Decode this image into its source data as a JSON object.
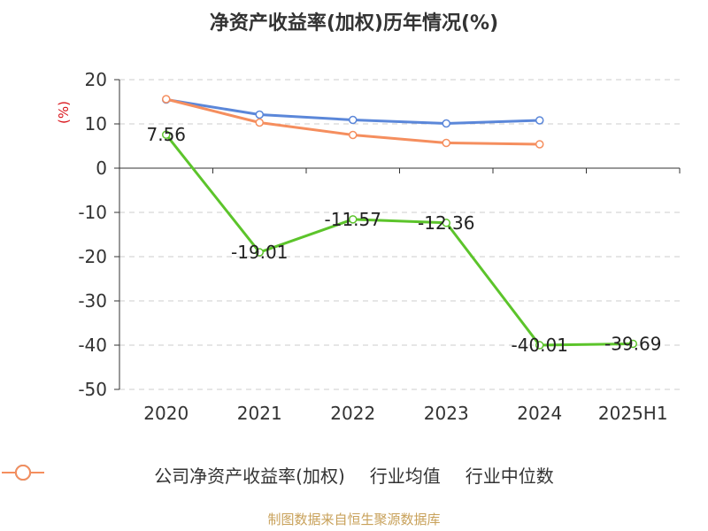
{
  "chart_data": {
    "type": "line",
    "title": "净资产收益率(加权)历年情况(%)",
    "ylabel": "(%)",
    "categories": [
      "2020",
      "2021",
      "2022",
      "2023",
      "2024",
      "2025H1"
    ],
    "ylim": [
      -50,
      20
    ],
    "yticks": [
      20,
      10,
      0,
      -10,
      -20,
      -30,
      -40,
      -50
    ],
    "grid": true,
    "legend_position": "bottom",
    "series": [
      {
        "name": "公司净资产收益率(加权)",
        "color": "#5cc42b",
        "values": [
          7.56,
          -19.01,
          -11.57,
          -12.36,
          -40.01,
          -39.69
        ],
        "show_labels": true
      },
      {
        "name": "行业均值",
        "color": "#5b87d9",
        "values": [
          15.5,
          12.1,
          10.9,
          10.1,
          10.8,
          null
        ],
        "show_labels": false
      },
      {
        "name": "行业中位数",
        "color": "#f58e5e",
        "values": [
          15.6,
          10.3,
          7.5,
          5.7,
          5.4,
          null
        ],
        "show_labels": false
      }
    ]
  },
  "source": "制图数据来自恒生聚源数据库"
}
